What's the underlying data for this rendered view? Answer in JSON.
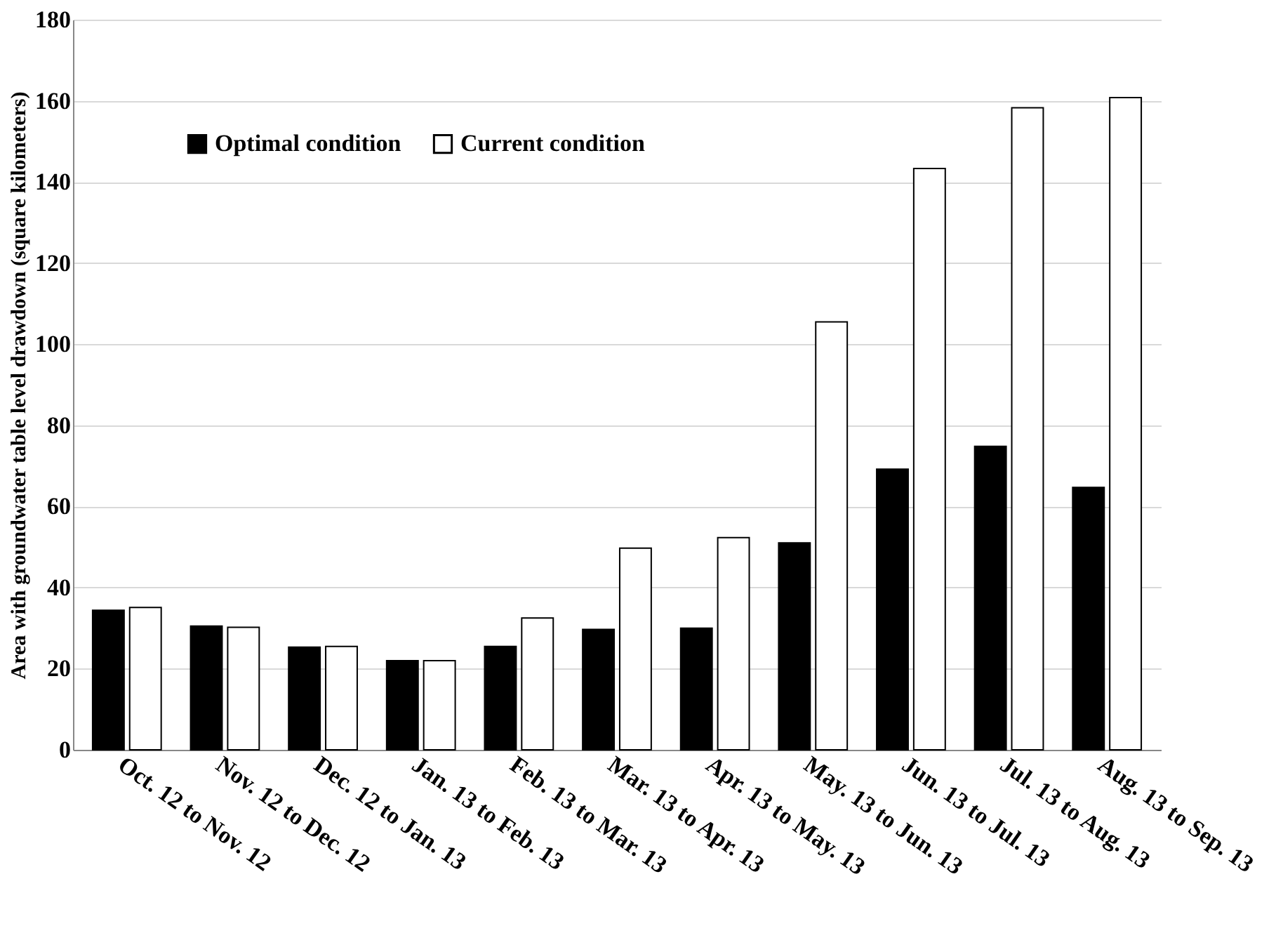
{
  "chart_data": {
    "type": "bar",
    "ylabel": "Area with groundwater table level drawdown (square kilometers)",
    "categories": [
      "Oct. 12 to Nov. 12",
      "Nov. 12 to Dec. 12",
      "Dec. 12 to Jan. 13",
      "Jan. 13 to Feb. 13",
      "Feb. 13 to Mar. 13",
      "Mar. 13 to Apr. 13",
      "Apr. 13 to May. 13",
      "May. 13 to Jun. 13",
      "Jun. 13 to Jul. 13",
      "Jul. 13 to Aug. 13",
      "Aug. 13 to Sep. 13"
    ],
    "series": [
      {
        "name": "Optimal condition",
        "color": "#000000",
        "values": [
          34.4,
          30.5,
          25.3,
          22,
          25.5,
          29.7,
          30,
          51,
          69.2,
          74.8,
          64.7
        ]
      },
      {
        "name": "Current condition",
        "color": "#ffffff",
        "values": [
          35.1,
          30.2,
          25.5,
          22,
          32.5,
          49.7,
          52.3,
          105.5,
          143.3,
          158.3,
          160.8
        ]
      }
    ],
    "ylim": [
      0,
      180
    ],
    "yticks": [
      0,
      20,
      40,
      60,
      80,
      100,
      120,
      140,
      160,
      180
    ],
    "grid": "y",
    "legend": "top left"
  }
}
